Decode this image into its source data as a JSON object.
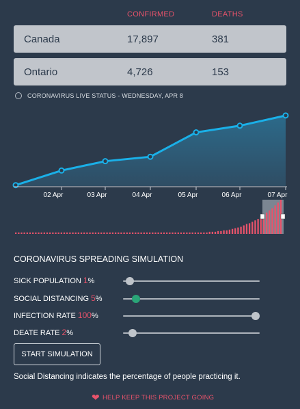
{
  "headers": {
    "confirmed": "CONFIRMED",
    "deaths": "DEATHS"
  },
  "rows": [
    {
      "region": "Canada",
      "confirmed": "17,897",
      "deaths": "381"
    },
    {
      "region": "Ontario",
      "confirmed": "4,726",
      "deaths": "153"
    }
  ],
  "status_text": "CORONAVIRUS LIVE STATUS - WEDNESDAY, APR 8",
  "chart_data": {
    "type": "area",
    "categories": [
      "02 Apr",
      "03 Apr",
      "04 Apr",
      "05 Apr",
      "06 Apr",
      "07 Apr"
    ],
    "x": [
      "01 Apr",
      "02 Apr",
      "03 Apr",
      "04 Apr",
      "05 Apr",
      "06 Apr",
      "07 Apr"
    ],
    "values": [
      2,
      35,
      56,
      66,
      121,
      136,
      159
    ],
    "line_color": "#1ab0e8",
    "fill_color": "#2c6a8a",
    "ylim": [
      0,
      185
    ]
  },
  "timeline": {
    "bars": [
      2,
      2,
      2,
      2,
      2,
      2,
      2,
      2,
      2,
      2,
      2,
      2,
      2,
      2,
      2,
      2,
      2,
      2,
      2,
      2,
      2,
      2,
      2,
      2,
      2,
      2,
      2,
      2,
      2,
      2,
      2,
      2,
      2,
      2,
      2,
      2,
      2,
      2,
      2,
      2,
      2,
      2,
      2,
      2,
      2,
      2,
      2,
      2,
      2,
      2,
      2,
      2,
      2,
      2,
      2,
      2,
      2,
      2,
      2,
      2,
      2,
      2,
      2,
      2,
      2,
      2,
      2,
      2,
      3,
      3,
      3,
      4,
      4,
      5,
      5,
      6,
      7,
      8,
      9,
      10,
      12,
      14,
      15,
      17,
      19,
      21,
      24,
      27,
      30,
      33,
      36,
      40,
      44,
      48
    ],
    "bar_color": "#e8536b",
    "selection_color": "#8a949f"
  },
  "simulation": {
    "title": "CORONAVIRUS SPREADING SIMULATION",
    "sliders": [
      {
        "label": "SICK POPULATION",
        "value": "1",
        "unit": "%",
        "fraction": 0.02,
        "active": false
      },
      {
        "label": "SOCIAL DISTANCING",
        "value": "5",
        "unit": "%",
        "fraction": 0.07,
        "active": true
      },
      {
        "label": "INFECTION RATE",
        "value": "100",
        "unit": "%",
        "fraction": 1.0,
        "active": false
      },
      {
        "label": "DEATE RATE",
        "value": "2",
        "unit": "%",
        "fraction": 0.04,
        "active": false
      }
    ],
    "start_button": "START SIMULATION",
    "note": "Social Distancing indicates the percentage of people practicing it."
  },
  "footer": {
    "link_text": "HELP KEEP THIS PROJECT GOING",
    "icon": "heart-icon"
  }
}
